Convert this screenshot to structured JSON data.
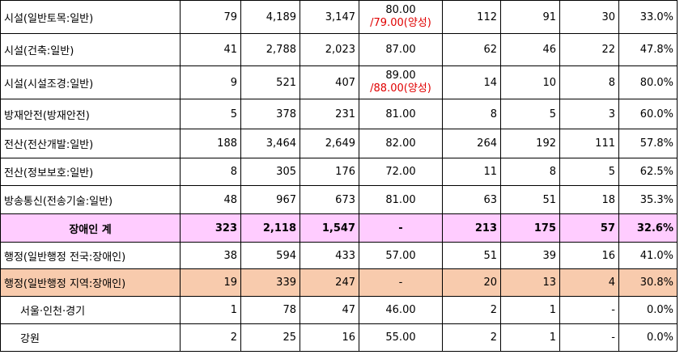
{
  "rows": [
    {
      "name": "시설(일반토목:일반)",
      "c1": "79",
      "c2": "4,189",
      "c3": "3,147",
      "score": "80.00",
      "score_sub": "/79.00(양성)",
      "c5": "112",
      "c6": "91",
      "c7": "30",
      "pct": "33.0%"
    },
    {
      "name": "시설(건축:일반)",
      "c1": "41",
      "c2": "2,788",
      "c3": "2,023",
      "score": "87.00",
      "score_sub": "",
      "c5": "62",
      "c6": "46",
      "c7": "22",
      "pct": "47.8%"
    },
    {
      "name": "시설(시설조경:일반)",
      "c1": "9",
      "c2": "521",
      "c3": "407",
      "score": "89.00",
      "score_sub": "/88.00(양성)",
      "c5": "14",
      "c6": "10",
      "c7": "8",
      "pct": "80.0%"
    },
    {
      "name": "방재안전(방재안전)",
      "c1": "5",
      "c2": "378",
      "c3": "231",
      "score": "81.00",
      "score_sub": "",
      "c5": "8",
      "c6": "5",
      "c7": "3",
      "pct": "60.0%"
    },
    {
      "name": "전산(전산개발:일반)",
      "c1": "188",
      "c2": "3,464",
      "c3": "2,649",
      "score": "82.00",
      "score_sub": "",
      "c5": "264",
      "c6": "192",
      "c7": "111",
      "pct": "57.8%"
    },
    {
      "name": "전산(정보보호:일반)",
      "c1": "8",
      "c2": "305",
      "c3": "176",
      "score": "72.00",
      "score_sub": "",
      "c5": "11",
      "c6": "8",
      "c7": "5",
      "pct": "62.5%"
    },
    {
      "name": "방송통신(전송기술:일반)",
      "c1": "48",
      "c2": "967",
      "c3": "673",
      "score": "81.00",
      "score_sub": "",
      "c5": "63",
      "c6": "51",
      "c7": "18",
      "pct": "35.3%"
    },
    {
      "name": "장애인 계",
      "c1": "323",
      "c2": "2,118",
      "c3": "1,547",
      "score": "-",
      "score_sub": "",
      "c5": "213",
      "c6": "175",
      "c7": "57",
      "pct": "32.6%"
    },
    {
      "name": "행정(일반행정 전국:장애인)",
      "c1": "38",
      "c2": "594",
      "c3": "433",
      "score": "57.00",
      "score_sub": "",
      "c5": "51",
      "c6": "39",
      "c7": "16",
      "pct": "41.0%"
    },
    {
      "name": "행정(일반행정 지역:장애인)",
      "c1": "19",
      "c2": "339",
      "c3": "247",
      "score": "-",
      "score_sub": "",
      "c5": "20",
      "c6": "13",
      "c7": "4",
      "pct": "30.8%"
    },
    {
      "name": "서울·인천·경기",
      "c1": "1",
      "c2": "78",
      "c3": "47",
      "score": "46.00",
      "score_sub": "",
      "c5": "2",
      "c6": "1",
      "c7": "-",
      "pct": "0.0%"
    },
    {
      "name": "강원",
      "c1": "2",
      "c2": "25",
      "c3": "16",
      "score": "55.00",
      "score_sub": "",
      "c5": "2",
      "c6": "1",
      "c7": "-",
      "pct": "0.0%"
    }
  ],
  "colors": {
    "subtotal_bg": "#ffccff",
    "regional_bg": "#f8cbad",
    "score_sub_text": "#e00000"
  }
}
